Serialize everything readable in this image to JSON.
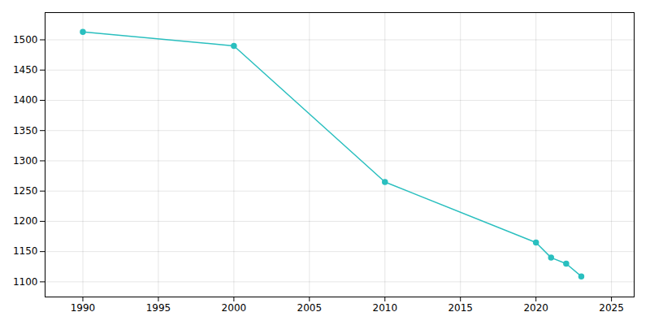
{
  "chart_data": {
    "type": "line",
    "x": [
      1990,
      2000,
      2010,
      2020,
      2021,
      2022,
      2023
    ],
    "values": [
      1513,
      1490,
      1265,
      1165,
      1140,
      1130,
      1109
    ],
    "color": "#2ABFBF",
    "marker": "circle",
    "xlim": [
      1987.5,
      2026.5
    ],
    "ylim": [
      1075,
      1545
    ],
    "xticks": [
      1990,
      1995,
      2000,
      2005,
      2010,
      2015,
      2020,
      2025
    ],
    "yticks": [
      1100,
      1150,
      1200,
      1250,
      1300,
      1350,
      1400,
      1450,
      1500
    ],
    "grid": true
  }
}
